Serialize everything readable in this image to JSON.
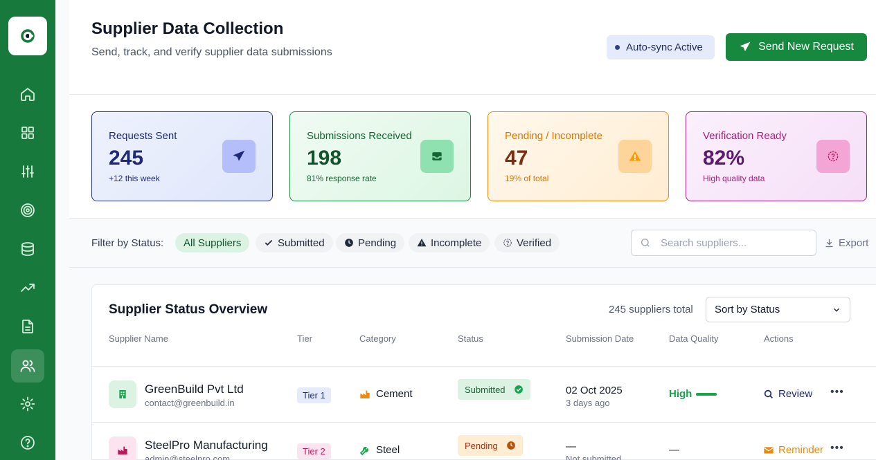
{
  "header": {
    "title": "Supplier Data Collection",
    "subtitle": "Send, track, and verify supplier data submissions",
    "autosync_label": "Auto-sync Active",
    "send_label": "Send New Request"
  },
  "stats": [
    {
      "label": "Requests Sent",
      "value": "245",
      "note": "+12 this week"
    },
    {
      "label": "Submissions Received",
      "value": "198",
      "note": "81% response rate"
    },
    {
      "label": "Pending / Incomplete",
      "value": "47",
      "note": "19% of total"
    },
    {
      "label": "Verification Ready",
      "value": "82%",
      "note": "High quality data"
    }
  ],
  "filters": {
    "label": "Filter by Status:",
    "chips": [
      "All Suppliers",
      "Submitted",
      "Pending",
      "Incomplete",
      "Verified"
    ],
    "search_placeholder": "Search suppliers...",
    "export_label": "Export"
  },
  "table": {
    "title": "Supplier Status Overview",
    "total": "245 suppliers total",
    "sort_label": "Sort by Status",
    "columns": [
      "Supplier Name",
      "Tier",
      "Category",
      "Status",
      "Submission Date",
      "Data Quality",
      "Actions"
    ],
    "rows": [
      {
        "name": "GreenBuild Pvt Ltd",
        "email": "contact@greenbuild.in",
        "tier": "Tier 1",
        "category": "Cement",
        "status": "Submitted",
        "date": "02 Oct 2025",
        "ago": "3 days ago",
        "quality": "High",
        "action": "Review",
        "more": "•••"
      },
      {
        "name": "SteelPro Manufacturing",
        "email": "admin@steelpro.com",
        "tier": "Tier 2",
        "category": "Steel",
        "status": "Pending",
        "date": "—",
        "ago": "Not submitted",
        "quality": "—",
        "action": "Reminder",
        "more": "•••"
      }
    ]
  },
  "colors": {
    "sidebar": "#177a3c",
    "primary": "#17893f",
    "pending": "#ea8a0e"
  }
}
